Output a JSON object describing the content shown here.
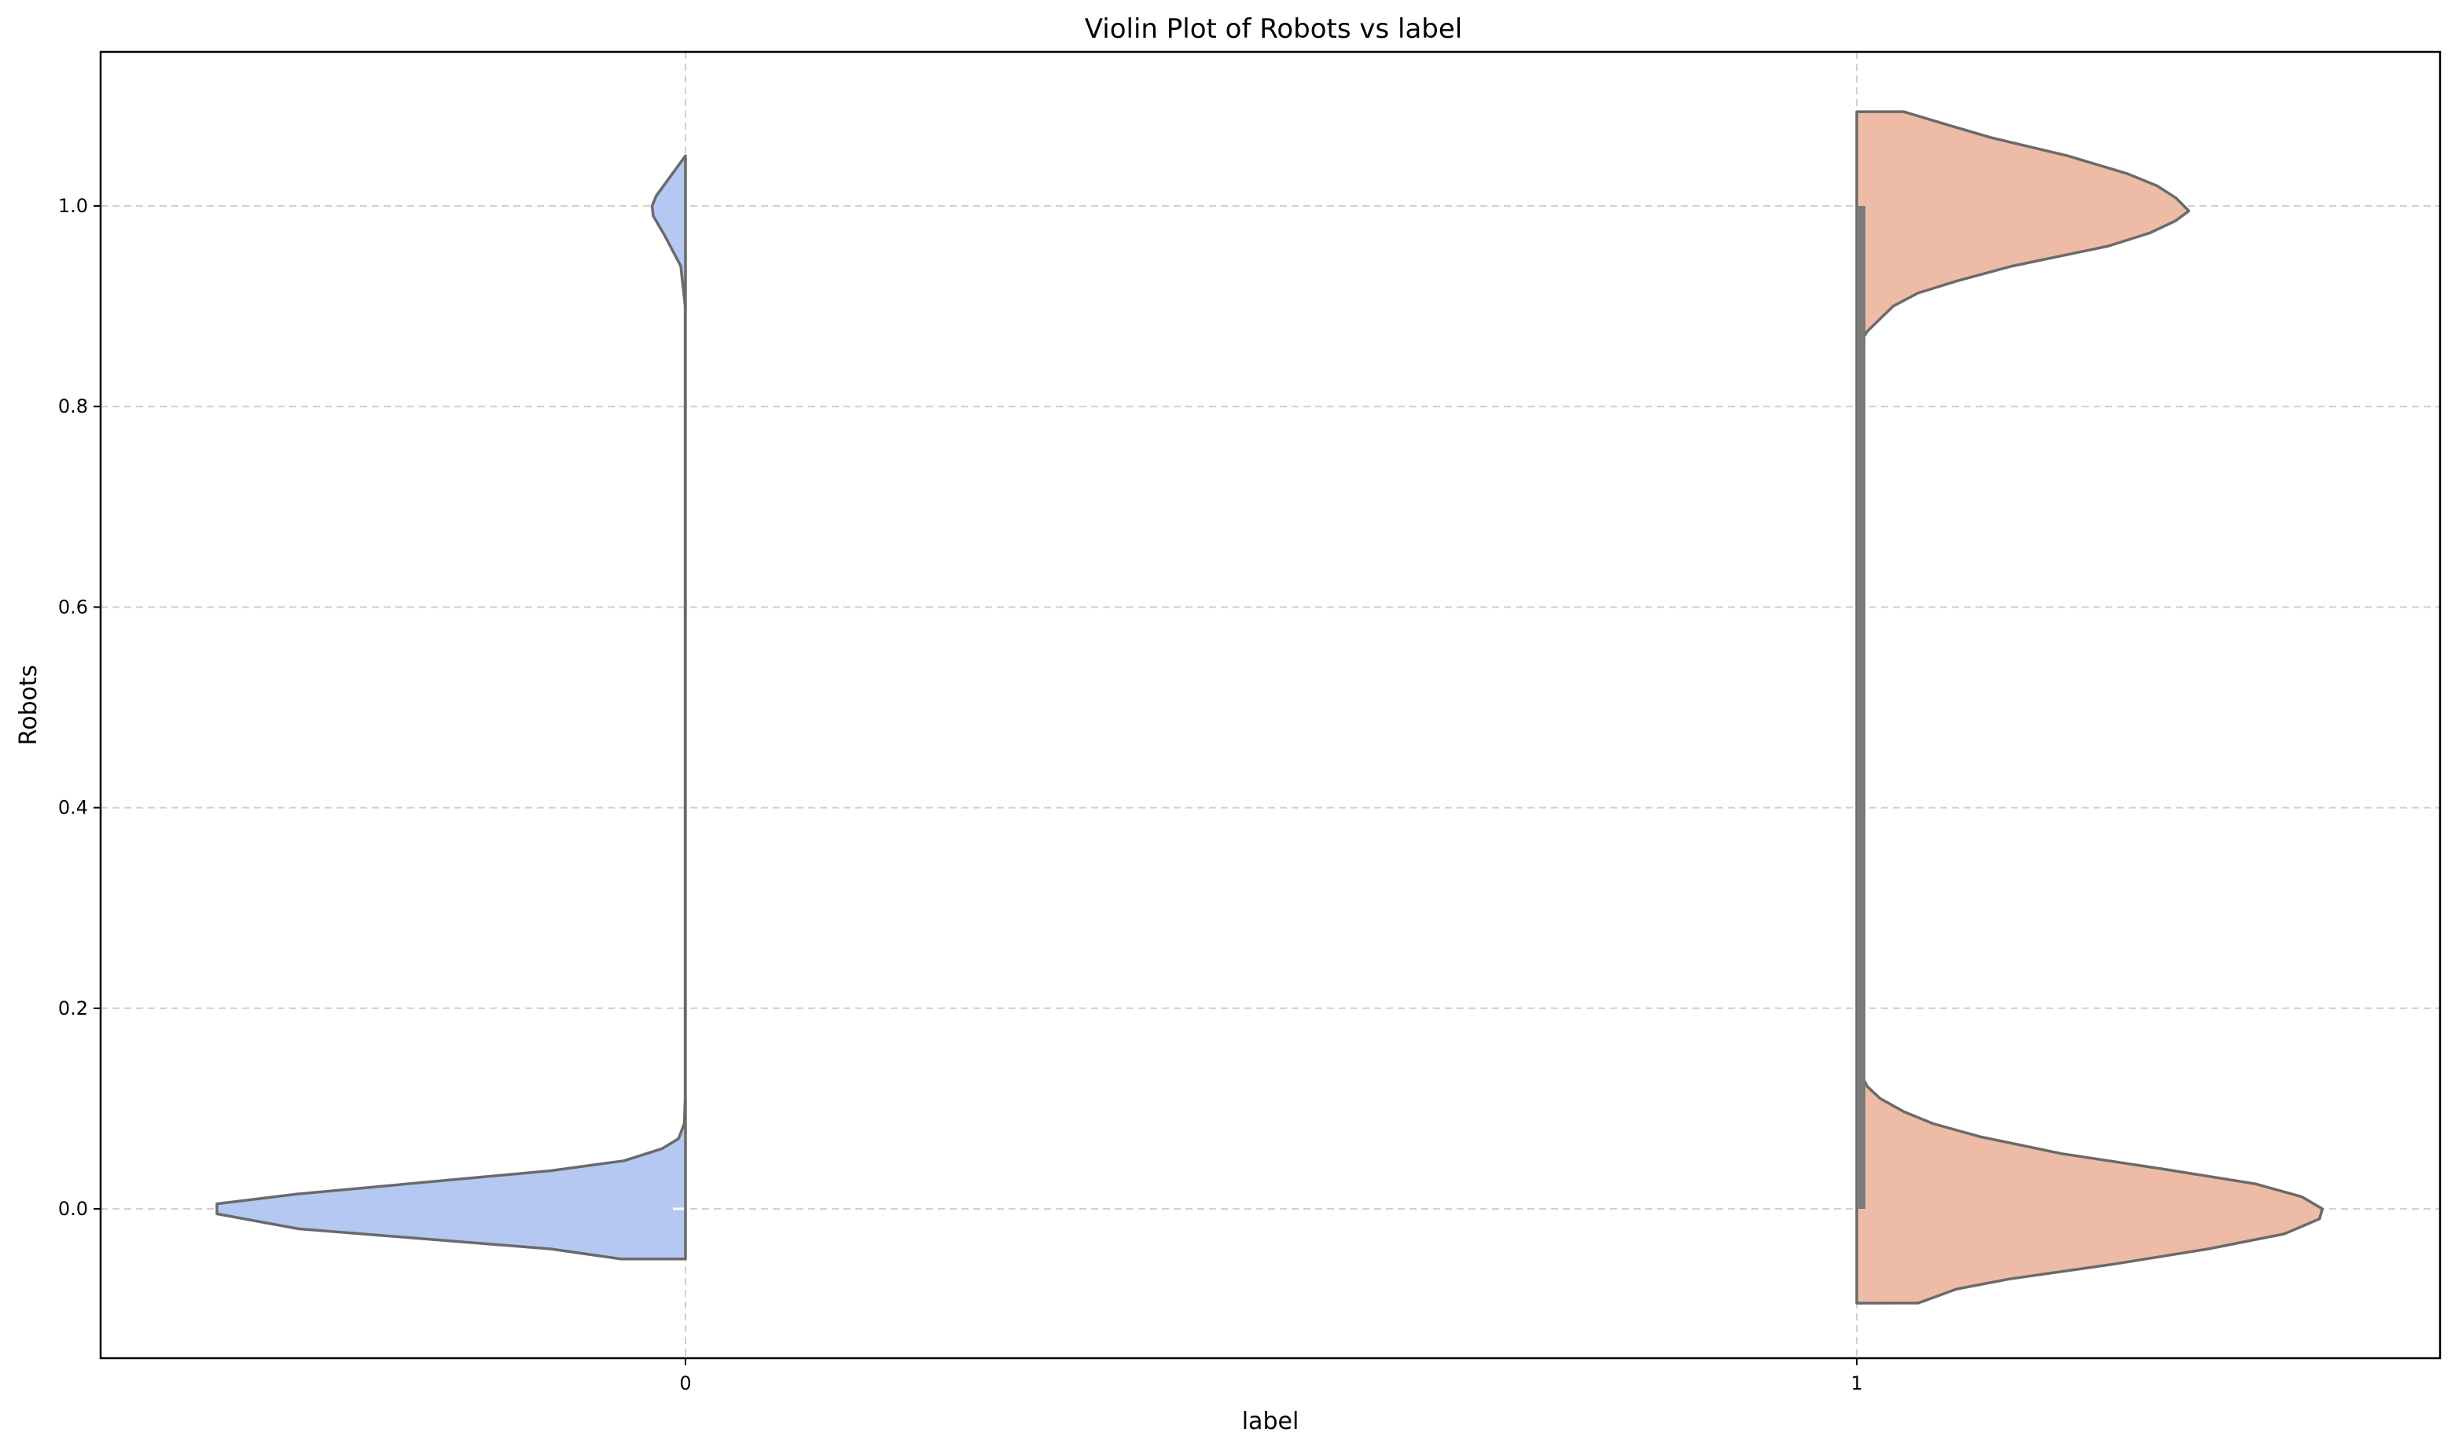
{
  "chart_data": {
    "type": "violin",
    "title": "Violin Plot of Robots vs label",
    "xlabel": "label",
    "ylabel": "Robots",
    "categories": [
      "0",
      "1"
    ],
    "x_ticks": [
      "0",
      "1"
    ],
    "y_ticks": [
      "0.0",
      "0.2",
      "0.4",
      "0.6",
      "0.8",
      "1.0"
    ],
    "ylim": [
      -0.15,
      1.15
    ],
    "grid": true,
    "split": true,
    "series": [
      {
        "category": "0",
        "side": "left",
        "color": "#b4c8f2",
        "range": [
          -0.05,
          1.05
        ],
        "kde": [
          {
            "y": -0.05,
            "w": 0.11
          },
          {
            "y": -0.04,
            "w": 0.23
          },
          {
            "y": -0.02,
            "w": 0.66
          },
          {
            "y": -0.005,
            "w": 0.8
          },
          {
            "y": 0.005,
            "w": 0.8
          },
          {
            "y": 0.015,
            "w": 0.66
          },
          {
            "y": 0.038,
            "w": 0.23
          },
          {
            "y": 0.048,
            "w": 0.105
          },
          {
            "y": 0.06,
            "w": 0.04
          },
          {
            "y": 0.07,
            "w": 0.012
          },
          {
            "y": 0.085,
            "w": 0.002
          },
          {
            "y": 0.11,
            "w": 0.0005
          },
          {
            "y": 0.9,
            "w": 0.0005
          },
          {
            "y": 0.94,
            "w": 0.008
          },
          {
            "y": 0.97,
            "w": 0.035
          },
          {
            "y": 0.99,
            "w": 0.055
          },
          {
            "y": 1.0,
            "w": 0.057
          },
          {
            "y": 1.01,
            "w": 0.05
          },
          {
            "y": 1.03,
            "w": 0.025
          },
          {
            "y": 1.05,
            "w": 0.0
          }
        ]
      },
      {
        "category": "1",
        "side": "right",
        "color": "#edbba6",
        "range": [
          -0.094,
          1.094
        ],
        "box": {
          "q1": 0.0,
          "q3": 1.0
        },
        "kde": [
          {
            "y": -0.094,
            "w": 0.105
          },
          {
            "y": -0.08,
            "w": 0.17
          },
          {
            "y": -0.07,
            "w": 0.26
          },
          {
            "y": -0.055,
            "w": 0.44
          },
          {
            "y": -0.04,
            "w": 0.6
          },
          {
            "y": -0.025,
            "w": 0.73
          },
          {
            "y": -0.01,
            "w": 0.79
          },
          {
            "y": 0.0,
            "w": 0.795
          },
          {
            "y": 0.012,
            "w": 0.76
          },
          {
            "y": 0.025,
            "w": 0.68
          },
          {
            "y": 0.04,
            "w": 0.52
          },
          {
            "y": 0.055,
            "w": 0.35
          },
          {
            "y": 0.072,
            "w": 0.21
          },
          {
            "y": 0.085,
            "w": 0.13
          },
          {
            "y": 0.097,
            "w": 0.08
          },
          {
            "y": 0.11,
            "w": 0.04
          },
          {
            "y": 0.122,
            "w": 0.018
          },
          {
            "y": 0.137,
            "w": 0.005
          },
          {
            "y": 0.86,
            "w": 0.002
          },
          {
            "y": 0.875,
            "w": 0.018
          },
          {
            "y": 0.9,
            "w": 0.062
          },
          {
            "y": 0.913,
            "w": 0.104
          },
          {
            "y": 0.925,
            "w": 0.17
          },
          {
            "y": 0.94,
            "w": 0.265
          },
          {
            "y": 0.96,
            "w": 0.43
          },
          {
            "y": 0.973,
            "w": 0.5
          },
          {
            "y": 0.985,
            "w": 0.544
          },
          {
            "y": 0.995,
            "w": 0.567
          },
          {
            "y": 1.008,
            "w": 0.545
          },
          {
            "y": 1.02,
            "w": 0.513
          },
          {
            "y": 1.032,
            "w": 0.463
          },
          {
            "y": 1.05,
            "w": 0.36
          },
          {
            "y": 1.068,
            "w": 0.23
          },
          {
            "y": 1.08,
            "w": 0.16
          },
          {
            "y": 1.094,
            "w": 0.08
          }
        ]
      }
    ]
  }
}
